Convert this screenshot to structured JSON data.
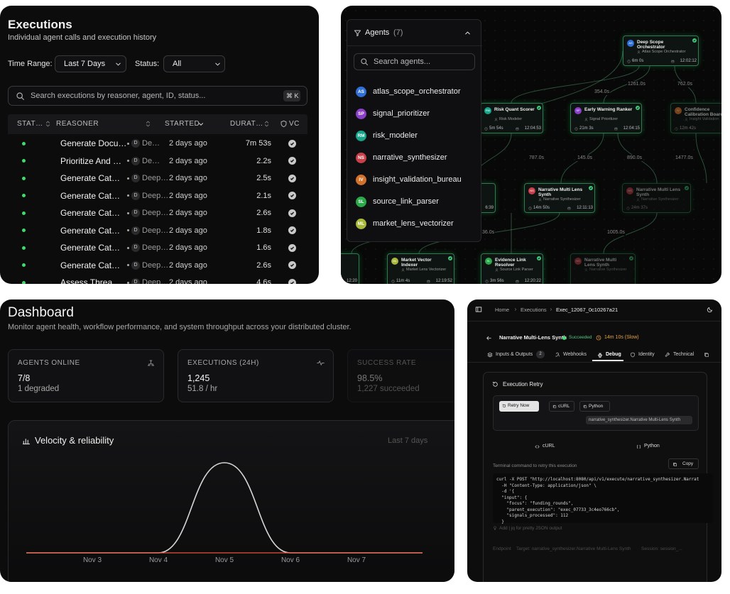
{
  "executions": {
    "title": "Executions",
    "subtitle": "Individual agent calls and execution history",
    "filters": {
      "time_range_label": "Time Range:",
      "time_range": "Last 7 Days",
      "status_label": "Status:",
      "status": "All"
    },
    "search_placeholder": "Search executions by reasoner, agent, ID, status...",
    "shortcut": "⌘ K",
    "columns": [
      "STAT…",
      "REASONER",
      "STARTED",
      "DURAT…",
      "VC"
    ],
    "rows": [
      [
        "Generate Docu…",
        "D",
        "De…",
        "2 days ago",
        "7m 53s"
      ],
      [
        "Prioritize And …",
        "D",
        "De…",
        "2 days ago",
        "2.2s"
      ],
      [
        "Generate Cat…",
        "D",
        "Deep…",
        "2 days ago",
        "2.5s"
      ],
      [
        "Generate Cat…",
        "D",
        "Deep…",
        "2 days ago",
        "2.1s"
      ],
      [
        "Generate Cat…",
        "D",
        "Deep…",
        "2 days ago",
        "2.6s"
      ],
      [
        "Generate Cat…",
        "D",
        "Deep…",
        "2 days ago",
        "1.8s"
      ],
      [
        "Generate Cat…",
        "D",
        "Deep…",
        "2 days ago",
        "1.6s"
      ],
      [
        "Generate Cat…",
        "D",
        "Deep…",
        "2 days ago",
        "2.6s"
      ],
      [
        "Assess Threa…",
        "D",
        "Deep…",
        "2 days ago",
        "4.6s"
      ]
    ]
  },
  "agent_graph": {
    "agents_panel": {
      "title": "Agents",
      "count": "(7)",
      "search_placeholder": "Search agents...",
      "agents": [
        {
          "initials": "AS",
          "name": "atlas_scope_orchestrator",
          "color": "#2f6fd6"
        },
        {
          "initials": "SP",
          "name": "signal_prioritizer",
          "color": "#8b3fc8"
        },
        {
          "initials": "RM",
          "name": "risk_modeler",
          "color": "#17a58a"
        },
        {
          "initials": "NS",
          "name": "narrative_synthesizer",
          "color": "#c8404a"
        },
        {
          "initials": "IV",
          "name": "insight_validation_bureau",
          "color": "#d2712a"
        },
        {
          "initials": "SL",
          "name": "source_link_parser",
          "color": "#2aa84a"
        },
        {
          "initials": "ML",
          "name": "market_lens_vectorizer",
          "color": "#a9b83a"
        }
      ]
    },
    "nodes": [
      {
        "title": "Deep Scope Orchestrator",
        "badge": "AS",
        "agent": "Atlas Scope Orchestrator",
        "duration": "6m 0s",
        "time": "12:02:12"
      },
      {
        "title": "Risk Quant Scorer",
        "badge": "RM",
        "agent": "Risk Modeler",
        "duration": "5m 54s",
        "time": "12:04:53"
      },
      {
        "title": "Early Warning Ranker",
        "badge": "SP",
        "agent": "Signal Prioritizer",
        "duration": "21m 3s",
        "time": "12:04:15"
      },
      {
        "title": "Confidence Calibration Board",
        "badge": "IV",
        "agent": "Insight Validation",
        "duration": "12m 42s"
      },
      {
        "title": "Narrative Multi Lens Synth",
        "badge": "NS",
        "agent": "Narrative Synthesizer",
        "duration": "14m 50s",
        "time": "12:11:13"
      },
      {
        "title": "Narrative Multi Lens Synth",
        "badge": "NS",
        "agent": "Narrative Synthesizer",
        "duration": "24m 37s"
      },
      {
        "title": "Market Vector Indexer",
        "badge": "ML",
        "agent": "Market Lens Vectorizer",
        "duration": "11m 4s",
        "time": "12:19:52"
      },
      {
        "title": "Evidence Link Resolver",
        "badge": "SL",
        "agent": "Source Link Parser",
        "duration": "3m 56s",
        "time": "12:20:22"
      },
      {
        "title": "Narrative Multi Lens Synth",
        "badge": "NS",
        "agent": "Narrative Synthesizer"
      },
      {
        "time": "6:39"
      },
      {
        "time": "12:20"
      }
    ],
    "edge_labels": [
      "354.0s",
      "1261.0s",
      "762.0s",
      "787.0s",
      "145.0s",
      "890.0s",
      "1477.0s",
      "36.0s",
      "1005.0s"
    ]
  },
  "dashboard": {
    "title": "Dashboard",
    "subtitle": "Monitor agent health, workflow performance, and system throughput across your distributed cluster.",
    "cards": [
      {
        "label": "AGENTS ONLINE",
        "value": "7/8",
        "detail": "1 degraded"
      },
      {
        "label": "EXECUTIONS (24H)",
        "value": "1,245",
        "detail": "51.8 / hr"
      },
      {
        "label": "SUCCESS RATE",
        "value": "98.5%",
        "detail": "1,227 succeeded"
      }
    ],
    "chart_data": {
      "type": "line",
      "title": "Velocity & reliability",
      "range": "Last 7 days",
      "categories": [
        null,
        "Nov 3",
        "Nov 4",
        "Nov 5",
        "Nov 6",
        "Nov 7",
        null
      ],
      "series": [
        {
          "color": "#d6d6d6",
          "values": [
            0,
            0,
            0,
            1245,
            0,
            0,
            0
          ]
        },
        {
          "color": "#e5533d",
          "values": [
            0,
            0,
            0,
            0,
            0,
            0,
            0
          ]
        }
      ]
    }
  },
  "execution_detail": {
    "breadcrumbs": [
      "Home",
      "Executions",
      "Exec_12067_0c10267a21"
    ],
    "title": "Narrative Multi-Lens Synth",
    "status": "Succeeded",
    "duration": "14m 10s (Slow)",
    "tabs": [
      {
        "label": "Inputs & Outputs",
        "badge": "2"
      },
      {
        "label": "Webhooks"
      },
      {
        "label": "Debug"
      },
      {
        "label": "Identity"
      },
      {
        "label": "Technical"
      }
    ],
    "retry": {
      "title": "Execution Retry",
      "buttons": [
        "Retry Now",
        "cURL",
        "Python"
      ],
      "target_tag": "narrative_synthesizer.Narrative Multi-Lens Synth",
      "format_tabs": [
        "cURL",
        "Python"
      ],
      "hint": "Terminal command to retry this execution",
      "copy": "Copy",
      "code": [
        "curl -X POST \"http://localhost:8080/api/v1/execute/narrative_synthesizer.Narrat",
        "  -H \"Content-Type: application/json\" \\",
        "  -d '{",
        "  \"input\": {",
        "    \"focus\": \"funding_rounds\",",
        "    \"parent_execution\": \"exec_07733_3c4eo766cb\",",
        "    \"signals_processed\": 112",
        "  }"
      ],
      "tip": "Add | jq for pretty JSON output",
      "meta": [
        "Endpoint",
        "Target: narrative_synthesizer.Narrative Multi-Lens Synth",
        "Session: session_..."
      ]
    }
  }
}
